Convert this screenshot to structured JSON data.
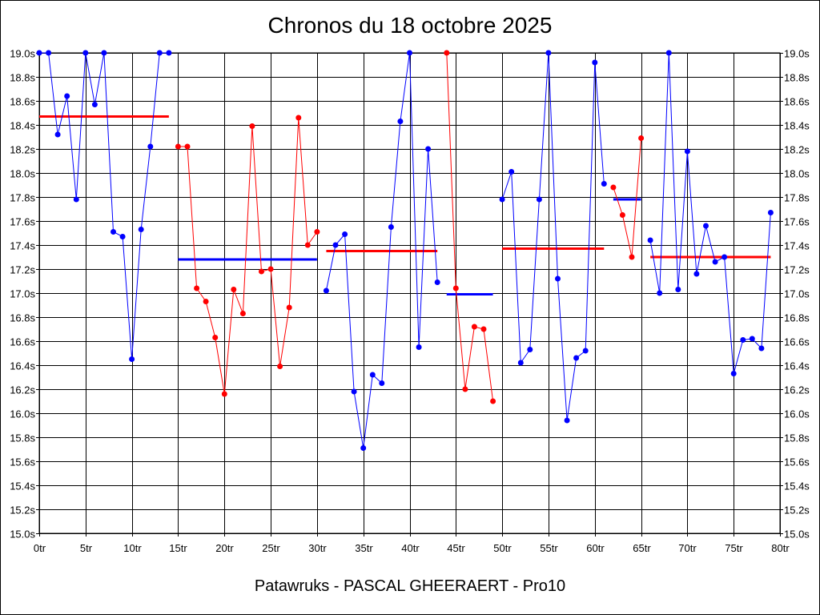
{
  "title": "Chronos du 18 octobre 2025",
  "footer": "Patawruks - PASCAL GHEERAERT - Pro10",
  "colors": {
    "red": "#ff0000",
    "blue": "#0000ff",
    "grid": "#000000"
  },
  "chart_data": {
    "type": "line",
    "title": "Chronos du 18 octobre 2025",
    "xlim": [
      0,
      80
    ],
    "ylim": [
      15.0,
      19.0
    ],
    "x_ticks": [
      {
        "v": 0,
        "label": "0tr"
      },
      {
        "v": 5,
        "label": "5tr"
      },
      {
        "v": 10,
        "label": "10tr"
      },
      {
        "v": 15,
        "label": "15tr"
      },
      {
        "v": 20,
        "label": "20tr"
      },
      {
        "v": 25,
        "label": "25tr"
      },
      {
        "v": 30,
        "label": "30tr"
      },
      {
        "v": 35,
        "label": "35tr"
      },
      {
        "v": 40,
        "label": "40tr"
      },
      {
        "v": 45,
        "label": "45tr"
      },
      {
        "v": 50,
        "label": "50tr"
      },
      {
        "v": 55,
        "label": "55tr"
      },
      {
        "v": 60,
        "label": "60tr"
      },
      {
        "v": 65,
        "label": "65tr"
      },
      {
        "v": 70,
        "label": "70tr"
      },
      {
        "v": 75,
        "label": "75tr"
      },
      {
        "v": 80,
        "label": "80tr"
      }
    ],
    "y_ticks": [
      {
        "v": 15.0,
        "label": "15.0s"
      },
      {
        "v": 15.2,
        "label": "15.2s"
      },
      {
        "v": 15.4,
        "label": "15.4s"
      },
      {
        "v": 15.6,
        "label": "15.6s"
      },
      {
        "v": 15.8,
        "label": "15.8s"
      },
      {
        "v": 16.0,
        "label": "16.0s"
      },
      {
        "v": 16.2,
        "label": "16.2s"
      },
      {
        "v": 16.4,
        "label": "16.4s"
      },
      {
        "v": 16.6,
        "label": "16.6s"
      },
      {
        "v": 16.8,
        "label": "16.8s"
      },
      {
        "v": 17.0,
        "label": "17.0s"
      },
      {
        "v": 17.2,
        "label": "17.2s"
      },
      {
        "v": 17.4,
        "label": "17.4s"
      },
      {
        "v": 17.6,
        "label": "17.6s"
      },
      {
        "v": 17.8,
        "label": "17.8s"
      },
      {
        "v": 18.0,
        "label": "18.0s"
      },
      {
        "v": 18.2,
        "label": "18.2s"
      },
      {
        "v": 18.4,
        "label": "18.4s"
      },
      {
        "v": 18.6,
        "label": "18.6s"
      },
      {
        "v": 18.8,
        "label": "18.8s"
      },
      {
        "v": 19.0,
        "label": "19.0s"
      }
    ],
    "grid": true,
    "series": [
      {
        "color": "blue",
        "x": [
          0,
          1,
          2,
          3,
          4,
          5,
          6,
          7,
          8,
          9,
          10,
          11,
          12,
          13,
          14
        ],
        "y": [
          19.0,
          19.0,
          18.32,
          18.64,
          17.78,
          19.0,
          18.57,
          19.0,
          17.51,
          17.47,
          16.45,
          17.53,
          18.22,
          19.0,
          19.0
        ],
        "average": 18.47
      },
      {
        "color": "red",
        "x": [
          15,
          16,
          17,
          18,
          19,
          20,
          21,
          22,
          23,
          24,
          25,
          26,
          27,
          28,
          29,
          30
        ],
        "y": [
          18.22,
          18.22,
          17.04,
          16.93,
          16.63,
          16.16,
          17.03,
          16.83,
          18.39,
          17.18,
          17.2,
          16.39,
          16.88,
          18.46,
          17.4,
          17.51
        ],
        "average": 17.28
      },
      {
        "color": "blue",
        "x": [
          31,
          32,
          33,
          34,
          35,
          36,
          37,
          38,
          39,
          40,
          41,
          42,
          43
        ],
        "y": [
          17.02,
          17.4,
          17.49,
          16.18,
          15.71,
          16.32,
          16.25,
          17.55,
          18.43,
          19.0,
          16.55,
          18.2,
          17.09
        ],
        "average": 17.35
      },
      {
        "color": "red",
        "x": [
          44,
          45,
          46,
          47,
          48,
          49
        ],
        "y": [
          19.0,
          17.04,
          16.2,
          16.72,
          16.7,
          16.1
        ],
        "average": 16.99
      },
      {
        "color": "blue",
        "x": [
          50,
          51,
          52,
          53,
          54,
          55,
          56,
          57,
          58,
          59,
          60,
          61
        ],
        "y": [
          17.78,
          18.01,
          16.42,
          16.53,
          17.78,
          19.0,
          17.12,
          15.94,
          16.46,
          16.52,
          18.92,
          17.91
        ],
        "average": 17.37
      },
      {
        "color": "red",
        "x": [
          62,
          63,
          64,
          65
        ],
        "y": [
          17.88,
          17.65,
          17.3,
          18.29
        ],
        "average": 17.78
      },
      {
        "color": "blue",
        "x": [
          66,
          67,
          68,
          69,
          70,
          71,
          72,
          73,
          74,
          75,
          76,
          77,
          78,
          79
        ],
        "y": [
          17.44,
          17.0,
          19.0,
          17.03,
          18.18,
          17.16,
          17.56,
          17.26,
          17.3,
          16.33,
          16.61,
          16.62,
          16.54,
          17.67
        ],
        "average": 17.3
      }
    ],
    "averages_style": "alternate",
    "note": ""
  }
}
